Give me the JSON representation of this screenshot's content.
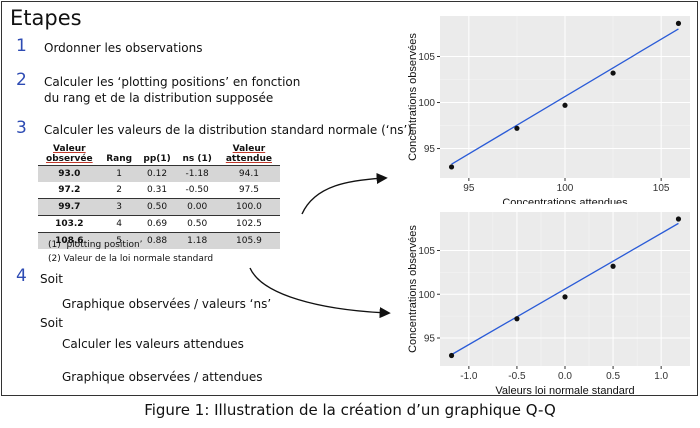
{
  "title": "Etapes",
  "steps": [
    {
      "num": "1",
      "text": "Ordonner les observations"
    },
    {
      "num": "2",
      "text_line1": "Calculer les ‘plotting positions’  en fonction",
      "text_line2": "du rang et de la distribution supposée"
    },
    {
      "num": "3",
      "text": "Calculer les valeurs de la distribution standard normale (‘ns’)"
    },
    {
      "num": "4",
      "text": "Soit"
    }
  ],
  "table": {
    "headers": [
      "Valeur observée",
      "Rang",
      "pp(1)",
      "ns (1)",
      "Valeur attendue"
    ],
    "header_obs_line1": "Valeur",
    "header_obs_line2": "observée",
    "header_att_line1": "Valeur",
    "header_att_line2": "attendue",
    "rows": [
      [
        "93.0",
        "1",
        "0.12",
        "-1.18",
        "94.1"
      ],
      [
        "97.2",
        "2",
        "0.31",
        "-0.50",
        "97.5"
      ],
      [
        "99.7",
        "3",
        "0.50",
        "0.00",
        "100.0"
      ],
      [
        "103.2",
        "4",
        "0.69",
        "0.50",
        "102.5"
      ],
      [
        "108.6",
        "5",
        "0.88",
        "1.18",
        "105.9"
      ]
    ]
  },
  "notes": [
    "(1)  ‘plotting position’",
    "(2)  Valeur de la loi normale standard"
  ],
  "option_a": "Graphique observées / valeurs ‘ns’",
  "soit2": "Soit",
  "option_b1": "Calculer les valeurs attendues",
  "option_b2": "Graphique observées / attendues",
  "caption": "Figure 1: Illustration de la création d’un graphique Q-Q",
  "chart_data": [
    {
      "type": "scatter",
      "xlabel": "Concentrations attendues",
      "ylabel": "Concentrations observées",
      "x": [
        94.1,
        97.5,
        100.0,
        102.5,
        105.9
      ],
      "y": [
        93.0,
        97.2,
        99.7,
        103.2,
        108.6
      ],
      "fit_line": {
        "x": [
          94.1,
          105.9
        ],
        "y": [
          93.3,
          108.0
        ]
      },
      "xlim": [
        93.5,
        106.5
      ],
      "ylim": [
        91.8,
        109.4
      ],
      "xticks": [
        95,
        100,
        105
      ],
      "xtick_labels": [
        "95",
        "100",
        "105"
      ],
      "yticks": [
        95,
        100,
        105
      ],
      "ytick_labels": [
        "95",
        "100",
        "105"
      ],
      "grid": true,
      "colors": {
        "line": "#2a5bd7",
        "points": "#111111",
        "panel": "#ebebeb"
      }
    },
    {
      "type": "scatter",
      "xlabel": "Valeurs loi normale standard",
      "ylabel": "Concentrations observées",
      "x": [
        -1.18,
        -0.5,
        0.0,
        0.5,
        1.18
      ],
      "y": [
        93.0,
        97.2,
        99.7,
        103.2,
        108.6
      ],
      "fit_line": {
        "x": [
          -1.18,
          1.18
        ],
        "y": [
          93.1,
          108.1
        ]
      },
      "xlim": [
        -1.3,
        1.3
      ],
      "ylim": [
        91.8,
        109.4
      ],
      "xticks": [
        -1.0,
        -0.5,
        0.0,
        0.5,
        1.0
      ],
      "xtick_labels": [
        "-1.0",
        "-0.5",
        "0.0",
        "0.5",
        "1.0"
      ],
      "yticks": [
        95,
        100,
        105
      ],
      "ytick_labels": [
        "95",
        "100",
        "105"
      ],
      "grid": true,
      "colors": {
        "line": "#2a5bd7",
        "points": "#111111",
        "panel": "#ebebeb"
      }
    }
  ]
}
